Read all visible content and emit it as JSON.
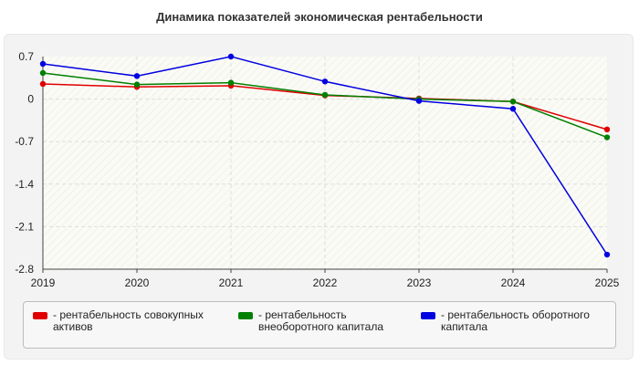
{
  "chart_data": {
    "type": "line",
    "title": "Динамика показателей экономическая рентабельности",
    "x": [
      "2019",
      "2020",
      "2021",
      "2022",
      "2023",
      "2024",
      "2025"
    ],
    "ylim": [
      -2.8,
      0.7
    ],
    "yticks": [
      "0.7",
      "0",
      "-0.7",
      "-1.4",
      "-2.1",
      "-2.8"
    ],
    "ytick_values": [
      0.7,
      0,
      -0.7,
      -1.4,
      -2.1,
      -2.8
    ],
    "grid": true,
    "legend_position": "bottom",
    "series": [
      {
        "name": "- рентабельность совокупных активов",
        "color": "#e00000",
        "values": [
          0.25,
          0.2,
          0.22,
          0.06,
          0.01,
          -0.04,
          -0.5
        ]
      },
      {
        "name": "- рентабельность внеоборотного капитала",
        "color": "#008000",
        "values": [
          0.43,
          0.24,
          0.27,
          0.07,
          0.0,
          -0.04,
          -0.63
        ]
      },
      {
        "name": "- рентабельность оборотного капитала",
        "color": "#0000e0",
        "values": [
          0.58,
          0.38,
          0.7,
          0.29,
          -0.03,
          -0.16,
          -2.56
        ]
      }
    ]
  }
}
